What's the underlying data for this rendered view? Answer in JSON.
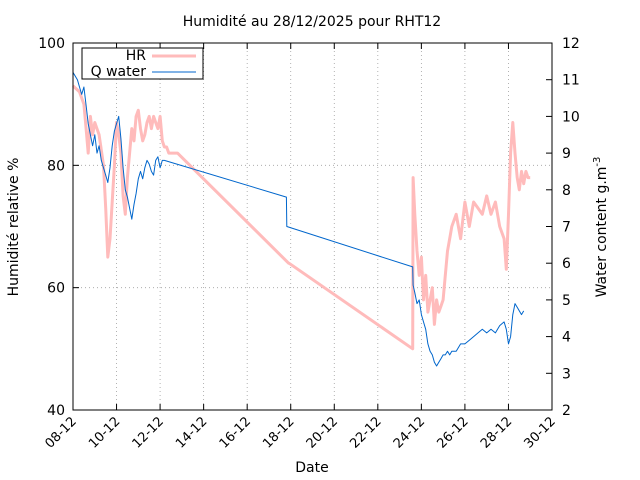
{
  "chart_data": {
    "type": "line",
    "title": "Humidité au 28/12/2025 pour RHT12",
    "xlabel": "Date",
    "ylabel": "Humidité relative %",
    "y2label_base": "Water content g.m",
    "y2label_sup": "-3",
    "x_ticks": [
      "08-12",
      "10-12",
      "12-12",
      "14-12",
      "16-12",
      "18-12",
      "20-12",
      "22-12",
      "24-12",
      "26-12",
      "28-12",
      "30-12"
    ],
    "xlim": [
      0,
      22
    ],
    "ylim": [
      40,
      100
    ],
    "y_ticks": [
      "40",
      "60",
      "80",
      "100"
    ],
    "y2lim": [
      2,
      12
    ],
    "y2_ticks": [
      "2",
      "3",
      "4",
      "5",
      "6",
      "7",
      "8",
      "9",
      "10",
      "11",
      "12"
    ],
    "grid": true,
    "legend": {
      "position": "top-left",
      "entries": [
        "HR",
        "Q water"
      ]
    },
    "colors": {
      "HR": "#ffbbbb",
      "Q water": "#0066cc"
    },
    "series": [
      {
        "name": "HR",
        "axis": "left",
        "x": [
          0.0,
          0.3,
          0.5,
          0.6,
          0.7,
          0.8,
          0.9,
          1.0,
          1.2,
          1.4,
          1.5,
          1.6,
          1.7,
          1.8,
          1.9,
          2.0,
          2.1,
          2.2,
          2.3,
          2.4,
          2.5,
          2.6,
          2.7,
          2.8,
          2.9,
          3.0,
          3.1,
          3.2,
          3.3,
          3.4,
          3.5,
          3.6,
          3.7,
          3.8,
          3.9,
          4.0,
          4.1,
          4.2,
          4.3,
          4.4,
          4.5,
          4.6,
          4.7,
          4.8,
          9.9,
          9.92,
          15.6,
          15.62,
          15.7,
          15.8,
          15.9,
          16.0,
          16.1,
          16.2,
          16.3,
          16.4,
          16.5,
          16.6,
          16.7,
          16.8,
          16.9,
          17.0,
          17.1,
          17.2,
          17.3,
          17.4,
          17.6,
          17.8,
          18.0,
          18.2,
          18.4,
          18.6,
          18.8,
          19.0,
          19.2,
          19.4,
          19.6,
          19.8,
          19.9,
          20.0,
          20.1,
          20.2,
          20.3,
          20.4,
          20.5,
          20.6,
          20.7,
          20.8,
          20.9,
          21.0
        ],
        "values": [
          93,
          92,
          90,
          86,
          82,
          88,
          85,
          87,
          85,
          80,
          73,
          65,
          68,
          74,
          80,
          87,
          85,
          82,
          75,
          72,
          78,
          82,
          86,
          84,
          88,
          89,
          86,
          84,
          85,
          87,
          88,
          86,
          88,
          87,
          86,
          88,
          84,
          83,
          83,
          82,
          82,
          82,
          82,
          82,
          64,
          64,
          50,
          78,
          72,
          66,
          62,
          65,
          58,
          62,
          56,
          58,
          60,
          54,
          58,
          56,
          57,
          58,
          62,
          66,
          68,
          70,
          72,
          68,
          74,
          70,
          74,
          73,
          72,
          75,
          72,
          74,
          70,
          68,
          63,
          72,
          82,
          87,
          82,
          78,
          76,
          79,
          77,
          79,
          78,
          78
        ]
      },
      {
        "name": "Q water",
        "axis": "right",
        "x": [
          0.0,
          0.2,
          0.3,
          0.4,
          0.5,
          0.6,
          0.7,
          0.8,
          0.9,
          1.0,
          1.1,
          1.2,
          1.3,
          1.4,
          1.5,
          1.6,
          1.7,
          1.8,
          1.9,
          2.0,
          2.1,
          2.2,
          2.3,
          2.4,
          2.5,
          2.6,
          2.7,
          2.8,
          2.9,
          3.0,
          3.1,
          3.2,
          3.3,
          3.4,
          3.5,
          3.6,
          3.7,
          3.8,
          3.9,
          4.0,
          4.1,
          4.2,
          9.8,
          9.82,
          15.6,
          15.62,
          15.7,
          15.8,
          15.9,
          16.0,
          16.1,
          16.2,
          16.3,
          16.4,
          16.5,
          16.6,
          16.7,
          16.8,
          16.9,
          17.0,
          17.1,
          17.2,
          17.3,
          17.4,
          17.6,
          17.8,
          18.0,
          18.2,
          18.4,
          18.6,
          18.8,
          19.0,
          19.2,
          19.4,
          19.6,
          19.8,
          19.9,
          20.0,
          20.1,
          20.2,
          20.3,
          20.4,
          20.5,
          20.6,
          20.7
        ],
        "values": [
          11.2,
          11.0,
          10.8,
          10.6,
          10.8,
          10.3,
          9.8,
          9.5,
          9.2,
          9.5,
          9.0,
          9.2,
          8.8,
          8.6,
          8.4,
          8.2,
          8.6,
          9.2,
          9.6,
          9.8,
          10.0,
          9.4,
          8.6,
          8.0,
          7.8,
          7.5,
          7.2,
          7.6,
          7.9,
          8.3,
          8.5,
          8.3,
          8.6,
          8.8,
          8.7,
          8.5,
          8.4,
          8.8,
          8.9,
          8.6,
          8.8,
          8.8,
          7.8,
          7.0,
          5.9,
          5.4,
          5.2,
          4.9,
          5.0,
          4.6,
          4.4,
          4.2,
          3.8,
          3.6,
          3.5,
          3.3,
          3.2,
          3.3,
          3.4,
          3.5,
          3.5,
          3.6,
          3.5,
          3.6,
          3.6,
          3.8,
          3.8,
          3.9,
          4.0,
          4.1,
          4.2,
          4.1,
          4.2,
          4.1,
          4.3,
          4.4,
          4.2,
          3.8,
          4.0,
          4.6,
          4.9,
          4.8,
          4.7,
          4.6,
          4.7
        ]
      }
    ]
  }
}
